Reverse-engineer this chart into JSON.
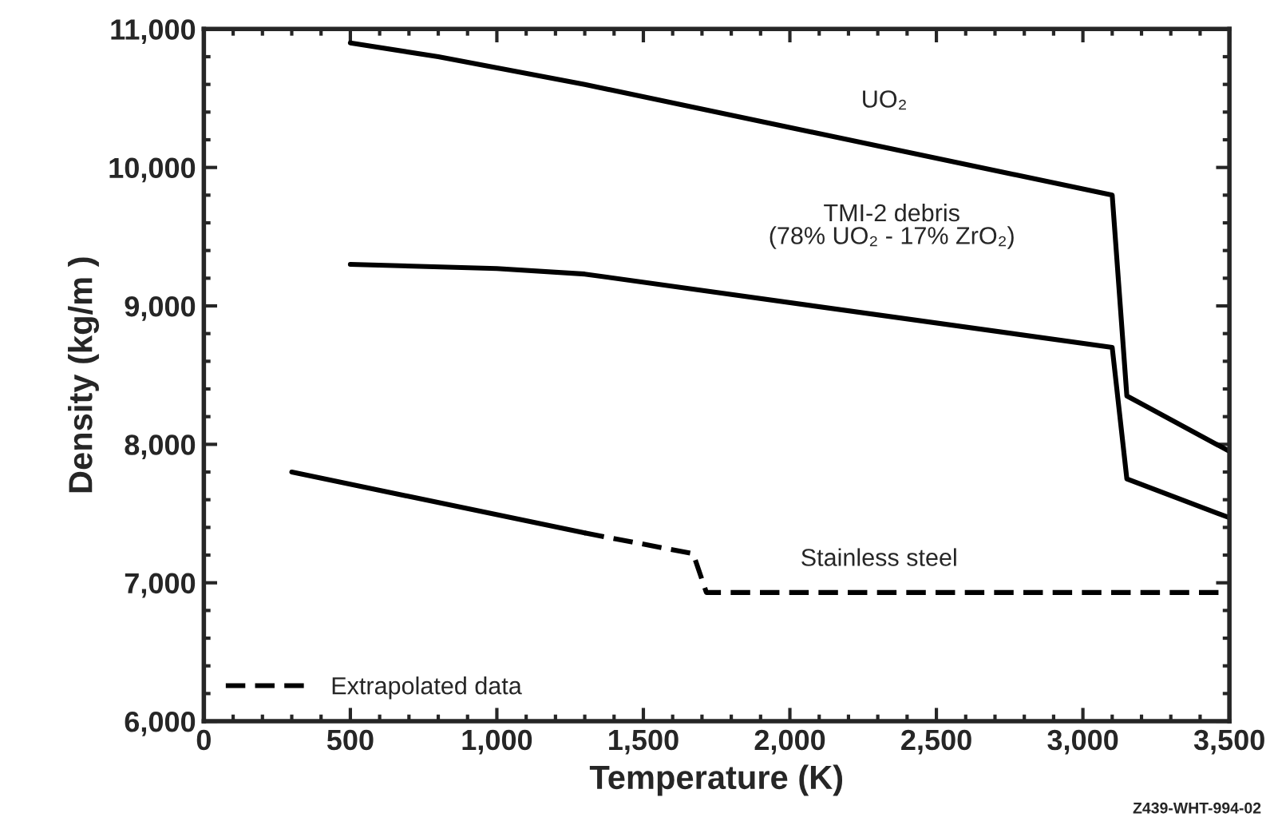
{
  "chart_data": {
    "type": "line",
    "xlabel": "Temperature (K)",
    "ylabel": "Density (kg/m )",
    "xlim": [
      0,
      3500
    ],
    "ylim": [
      6000,
      11000
    ],
    "xticks": [
      {
        "value": 0,
        "label": "0"
      },
      {
        "value": 500,
        "label": "500"
      },
      {
        "value": 1000,
        "label": "1,000"
      },
      {
        "value": 1500,
        "label": "1,500"
      },
      {
        "value": 2000,
        "label": "2,000"
      },
      {
        "value": 2500,
        "label": "2,500"
      },
      {
        "value": 3000,
        "label": "3,000"
      },
      {
        "value": 3500,
        "label": "3,500"
      }
    ],
    "yticks": [
      {
        "value": 6000,
        "label": "6,000"
      },
      {
        "value": 7000,
        "label": "7,000"
      },
      {
        "value": 8000,
        "label": "8,000"
      },
      {
        "value": 9000,
        "label": "9,000"
      },
      {
        "value": 10000,
        "label": "10,000"
      },
      {
        "value": 11000,
        "label": "11,000"
      }
    ],
    "series": [
      {
        "color": "#000000",
        "line_style": "solid",
        "x": [
          500,
          800,
          1300,
          3100,
          3150,
          3500
        ],
        "values": [
          10900,
          10800,
          10600,
          9800,
          8350,
          7950
        ]
      },
      {
        "color": "#000000",
        "line_style": "solid",
        "x": [
          500,
          1000,
          1300,
          3100,
          3150,
          3500
        ],
        "values": [
          9300,
          9270,
          9230,
          8700,
          7750,
          7470
        ]
      },
      {
        "color": "#000000",
        "line_style": "solid",
        "x": [
          300,
          1300
        ],
        "values": [
          7800,
          7360
        ]
      },
      {
        "name": "Extrapolated data",
        "color": "#000000",
        "line_style": "dashed",
        "x": [
          1300,
          1670,
          1715,
          3500
        ],
        "values": [
          7360,
          7210,
          6930,
          6930
        ]
      }
    ],
    "annotations": [
      "UO₂",
      "TMI-2 debris\n(78% UO₂ - 17% ZrO₂)",
      "Stainless steel",
      "Z439-WHT-994-02"
    ],
    "grid": false,
    "legend": "bottom left",
    "marker": "none"
  }
}
